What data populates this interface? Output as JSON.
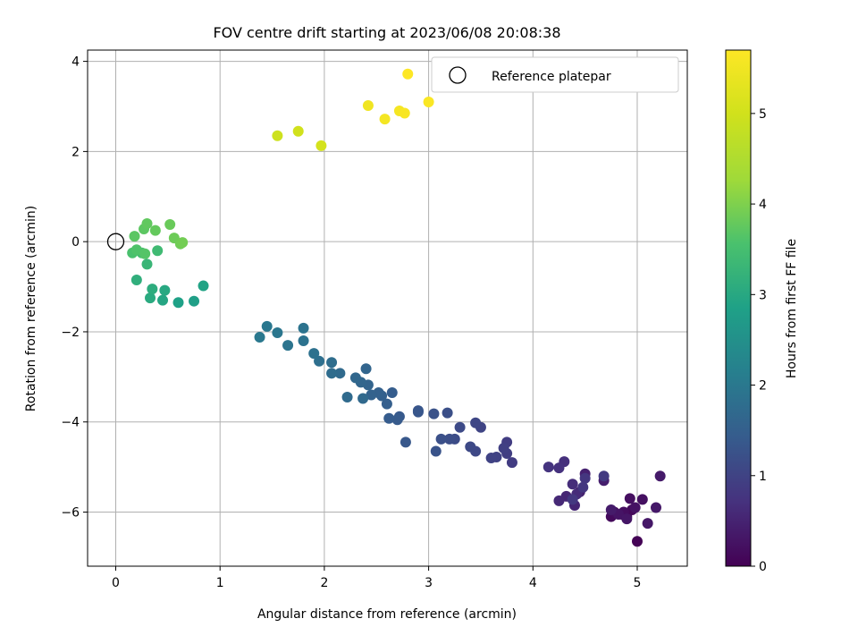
{
  "chart_data": {
    "type": "scatter",
    "title": "FOV centre drift starting at 2023/06/08 20:08:38",
    "xlabel": "Angular distance from reference (arcmin)",
    "ylabel": "Rotation from reference (arcmin)",
    "xlim": [
      -0.27,
      5.48
    ],
    "ylim": [
      -7.2,
      4.25
    ],
    "xticks": [
      0,
      1,
      2,
      3,
      4,
      5
    ],
    "yticks": [
      -6,
      -4,
      -2,
      0,
      2,
      4
    ],
    "grid": true,
    "legend": {
      "entries": [
        "Reference platepar"
      ],
      "location": "top-right"
    },
    "colorbar": {
      "label": "Hours from first FF file",
      "range": [
        0,
        5.7
      ],
      "ticks": [
        0,
        1,
        2,
        3,
        4,
        5
      ],
      "colormap": "viridis"
    },
    "reference_point": {
      "x": 0,
      "y": 0
    },
    "points": [
      [
        5.0,
        -6.65,
        0.02
      ],
      [
        4.9,
        -6.1,
        0.05
      ],
      [
        4.85,
        -6.05,
        0.08
      ],
      [
        4.95,
        -5.95,
        0.1
      ],
      [
        4.75,
        -6.1,
        0.12
      ],
      [
        4.78,
        -6.0,
        0.15
      ],
      [
        4.87,
        -6.0,
        0.18
      ],
      [
        4.93,
        -5.7,
        0.2
      ],
      [
        5.05,
        -5.72,
        0.22
      ],
      [
        4.98,
        -5.9,
        0.25
      ],
      [
        4.82,
        -6.05,
        0.28
      ],
      [
        4.9,
        -6.15,
        0.3
      ],
      [
        5.1,
        -6.25,
        0.32
      ],
      [
        5.18,
        -5.9,
        0.34
      ],
      [
        5.22,
        -5.2,
        0.36
      ],
      [
        4.75,
        -5.95,
        0.38
      ],
      [
        4.68,
        -5.3,
        0.42
      ],
      [
        4.5,
        -5.15,
        0.45
      ],
      [
        4.45,
        -5.55,
        0.48
      ],
      [
        4.4,
        -5.85,
        0.52
      ],
      [
        4.32,
        -5.65,
        0.55
      ],
      [
        4.25,
        -5.75,
        0.58
      ],
      [
        4.42,
        -5.6,
        0.62
      ],
      [
        4.38,
        -5.38,
        0.65
      ],
      [
        4.3,
        -4.88,
        0.68
      ],
      [
        4.25,
        -5.02,
        0.72
      ],
      [
        4.15,
        -5.0,
        0.75
      ],
      [
        4.5,
        -5.25,
        0.78
      ],
      [
        4.48,
        -5.45,
        0.8
      ],
      [
        4.38,
        -5.72,
        0.82
      ],
      [
        4.68,
        -5.2,
        0.85
      ],
      [
        3.8,
        -4.9,
        0.88
      ],
      [
        3.75,
        -4.45,
        0.9
      ],
      [
        3.75,
        -4.7,
        0.92
      ],
      [
        3.72,
        -4.58,
        0.95
      ],
      [
        3.65,
        -4.78,
        0.98
      ],
      [
        3.6,
        -4.8,
        1.0
      ],
      [
        3.5,
        -4.12,
        1.02
      ],
      [
        3.45,
        -4.02,
        1.05
      ],
      [
        3.45,
        -4.65,
        1.08
      ],
      [
        3.4,
        -4.55,
        1.1
      ],
      [
        3.3,
        -4.12,
        1.12
      ],
      [
        3.25,
        -4.38,
        1.15
      ],
      [
        3.2,
        -4.38,
        1.18
      ],
      [
        3.18,
        -3.8,
        1.2
      ],
      [
        3.12,
        -4.38,
        1.22
      ],
      [
        3.05,
        -3.82,
        1.25
      ],
      [
        3.07,
        -4.65,
        1.28
      ],
      [
        2.9,
        -3.75,
        1.3
      ],
      [
        2.9,
        -3.78,
        1.32
      ],
      [
        2.78,
        -4.45,
        1.35
      ],
      [
        2.72,
        -3.88,
        1.38
      ],
      [
        2.7,
        -3.95,
        1.4
      ],
      [
        2.62,
        -3.92,
        1.42
      ],
      [
        2.65,
        -3.35,
        1.45
      ],
      [
        2.6,
        -3.6,
        1.48
      ],
      [
        2.55,
        -3.42,
        1.5
      ],
      [
        2.52,
        -3.35,
        1.52
      ],
      [
        2.45,
        -3.4,
        1.55
      ],
      [
        2.42,
        -3.18,
        1.58
      ],
      [
        2.4,
        -2.82,
        1.6
      ],
      [
        2.35,
        -3.12,
        1.62
      ],
      [
        2.3,
        -3.02,
        1.65
      ],
      [
        2.37,
        -3.48,
        1.68
      ],
      [
        2.22,
        -3.45,
        1.7
      ],
      [
        2.15,
        -2.92,
        1.72
      ],
      [
        2.07,
        -2.92,
        1.75
      ],
      [
        2.07,
        -2.68,
        1.78
      ],
      [
        1.95,
        -2.65,
        1.82
      ],
      [
        1.9,
        -2.48,
        1.85
      ],
      [
        1.8,
        -2.2,
        1.88
      ],
      [
        1.8,
        -1.92,
        1.9
      ],
      [
        1.65,
        -2.3,
        1.92
      ],
      [
        1.55,
        -2.02,
        1.95
      ],
      [
        1.45,
        -1.88,
        1.98
      ],
      [
        1.38,
        -2.12,
        2.0
      ],
      [
        0.75,
        -1.32,
        2.8
      ],
      [
        0.6,
        -1.35,
        2.85
      ],
      [
        0.84,
        -0.98,
        2.9
      ],
      [
        0.45,
        -1.3,
        2.95
      ],
      [
        0.47,
        -1.08,
        3.0
      ],
      [
        0.33,
        -1.25,
        3.05
      ],
      [
        0.35,
        -1.05,
        3.1
      ],
      [
        0.2,
        -0.85,
        3.15
      ],
      [
        0.3,
        -0.5,
        3.3
      ],
      [
        0.4,
        -0.2,
        3.4
      ],
      [
        0.25,
        -0.25,
        3.5
      ],
      [
        0.16,
        -0.25,
        3.55
      ],
      [
        0.2,
        -0.18,
        3.6
      ],
      [
        0.28,
        -0.27,
        3.65
      ],
      [
        0.18,
        0.12,
        3.7
      ],
      [
        0.27,
        0.28,
        3.72
      ],
      [
        0.3,
        0.4,
        3.75
      ],
      [
        0.38,
        0.25,
        3.78
      ],
      [
        0.52,
        0.38,
        3.82
      ],
      [
        0.56,
        0.08,
        3.85
      ],
      [
        0.62,
        -0.05,
        3.88
      ],
      [
        0.64,
        -0.02,
        3.9
      ],
      [
        1.55,
        2.35,
        4.95
      ],
      [
        1.75,
        2.45,
        5.0
      ],
      [
        1.97,
        2.13,
        5.05
      ],
      [
        2.42,
        3.02,
        5.5
      ],
      [
        2.58,
        2.72,
        5.55
      ],
      [
        2.72,
        2.9,
        5.58
      ],
      [
        2.77,
        2.85,
        5.62
      ],
      [
        3.0,
        3.1,
        5.65
      ],
      [
        2.8,
        3.72,
        5.7
      ]
    ]
  }
}
